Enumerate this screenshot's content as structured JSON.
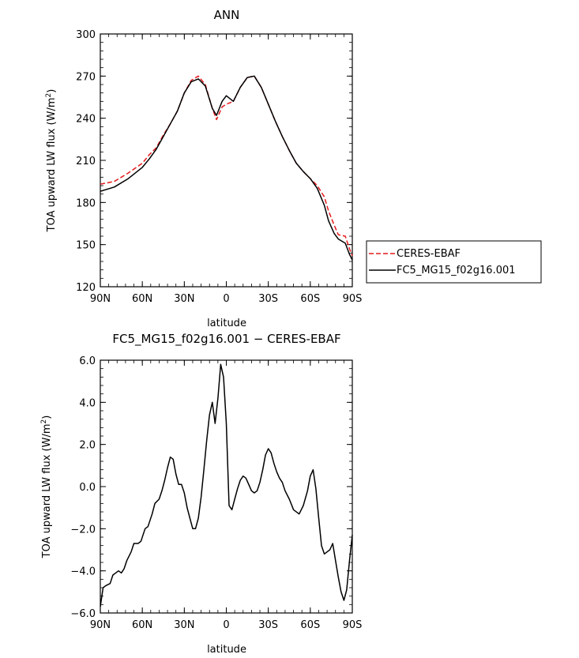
{
  "chart_data": [
    {
      "type": "line",
      "title": "ANN",
      "xlabel": "latitude",
      "ylabel": "TOA upward LW flux (W/m²)",
      "ylabel_parts": {
        "main": "TOA upward LW flux (W/m",
        "sup": "2",
        "end": ")"
      },
      "xlim": [
        -90,
        90
      ],
      "ylim": [
        120,
        300
      ],
      "xticks": [
        -90,
        -60,
        -30,
        0,
        30,
        60,
        90
      ],
      "xtick_labels": [
        "90N",
        "60N",
        "30N",
        "0",
        "30S",
        "60S",
        "90S"
      ],
      "yticks": [
        120,
        150,
        180,
        210,
        240,
        270,
        300
      ],
      "ytick_labels": [
        "120",
        "150",
        "180",
        "210",
        "240",
        "270",
        "300"
      ],
      "legend": "right",
      "series": [
        {
          "name": "CERES-EBAF",
          "color": "#e41a1c",
          "dash": "dashed",
          "x": [
            -90,
            -80,
            -70,
            -60,
            -55,
            -50,
            -45,
            -40,
            -35,
            -30,
            -25,
            -20,
            -15,
            -10,
            -7,
            -3,
            0,
            5,
            10,
            15,
            20,
            25,
            30,
            35,
            40,
            45,
            50,
            55,
            60,
            65,
            70,
            73,
            77,
            80,
            85,
            88,
            90
          ],
          "y": [
            193,
            195,
            201,
            208,
            214,
            219,
            228,
            236,
            245,
            258,
            267,
            270,
            264,
            247,
            239,
            248,
            250,
            252,
            262,
            269,
            270,
            262,
            250,
            238,
            227,
            217,
            208,
            202,
            197,
            192,
            184,
            174,
            164,
            157,
            156,
            147,
            142
          ]
        },
        {
          "name": "FC5_MG15_f02g16.001",
          "color": "#000000",
          "dash": "solid",
          "x": [
            -90,
            -80,
            -70,
            -60,
            -55,
            -50,
            -45,
            -40,
            -35,
            -30,
            -25,
            -20,
            -15,
            -10,
            -7,
            -3,
            0,
            5,
            10,
            15,
            20,
            25,
            30,
            35,
            40,
            45,
            50,
            55,
            60,
            65,
            70,
            73,
            77,
            80,
            85,
            88,
            90
          ],
          "y": [
            188,
            191,
            197,
            205,
            211,
            218,
            227,
            236,
            245,
            258,
            266,
            268,
            263,
            247,
            242,
            252,
            256,
            252,
            262,
            269,
            270,
            262,
            250,
            238,
            227,
            217,
            208,
            202,
            197,
            190,
            178,
            167,
            158,
            154,
            151,
            143,
            139
          ]
        }
      ]
    },
    {
      "type": "line",
      "title": "FC5_MG15_f02g16.001 − CERES-EBAF",
      "xlabel": "latitude",
      "ylabel": "TOA upward LW flux (W/m²)",
      "ylabel_parts": {
        "main": "TOA upward LW flux (W/m",
        "sup": "2",
        "end": ")"
      },
      "xlim": [
        -90,
        90
      ],
      "ylim": [
        -6,
        6
      ],
      "xticks": [
        -90,
        -60,
        -30,
        0,
        30,
        60,
        90
      ],
      "xtick_labels": [
        "90N",
        "60N",
        "30N",
        "0",
        "30S",
        "60S",
        "90S"
      ],
      "yticks": [
        -6,
        -4,
        -2,
        0,
        2,
        4,
        6
      ],
      "ytick_labels": [
        "−6.0",
        "−4.0",
        "−2.0",
        "0.0",
        "2.0",
        "4.0",
        "6.0"
      ],
      "series": [
        {
          "name": "",
          "color": "#000000",
          "dash": "solid",
          "x": [
            -90,
            -88,
            -86,
            -83,
            -81,
            -79,
            -77,
            -75,
            -73,
            -71,
            -68,
            -66,
            -63,
            -61,
            -58,
            -56,
            -53,
            -51,
            -48,
            -46,
            -44,
            -42,
            -40,
            -38,
            -36,
            -34,
            -32,
            -30,
            -28,
            -26,
            -24,
            -22,
            -20,
            -18,
            -16,
            -14,
            -12,
            -10,
            -8,
            -6,
            -4,
            -2,
            0,
            2,
            4,
            6,
            8,
            10,
            12,
            14,
            16,
            18,
            20,
            22,
            24,
            26,
            28,
            30,
            32,
            34,
            36,
            38,
            40,
            42,
            45,
            48,
            52,
            55,
            58,
            60,
            62,
            64,
            66,
            68,
            70,
            72,
            74,
            76,
            78,
            80,
            82,
            84,
            86,
            88,
            90
          ],
          "y": [
            -5.7,
            -4.8,
            -4.7,
            -4.6,
            -4.2,
            -4.1,
            -4.0,
            -4.1,
            -3.9,
            -3.5,
            -3.1,
            -2.7,
            -2.7,
            -2.6,
            -2.0,
            -1.9,
            -1.3,
            -0.8,
            -0.6,
            -0.2,
            0.3,
            0.9,
            1.4,
            1.3,
            0.6,
            0.1,
            0.1,
            -0.3,
            -1.0,
            -1.5,
            -2.0,
            -2.0,
            -1.5,
            -0.5,
            0.8,
            2.2,
            3.4,
            4.0,
            3.0,
            4.2,
            5.8,
            5.2,
            3.0,
            -0.9,
            -1.1,
            -0.6,
            -0.1,
            0.3,
            0.5,
            0.4,
            0.1,
            -0.2,
            -0.3,
            -0.2,
            0.2,
            0.8,
            1.5,
            1.8,
            1.6,
            1.1,
            0.7,
            0.4,
            0.2,
            -0.2,
            -0.6,
            -1.1,
            -1.3,
            -0.9,
            -0.2,
            0.5,
            0.8,
            -0.1,
            -1.5,
            -2.8,
            -3.2,
            -3.1,
            -3.0,
            -2.7,
            -3.5,
            -4.3,
            -5.0,
            -5.4,
            -4.9,
            -3.5,
            -2.3
          ]
        }
      ]
    }
  ]
}
